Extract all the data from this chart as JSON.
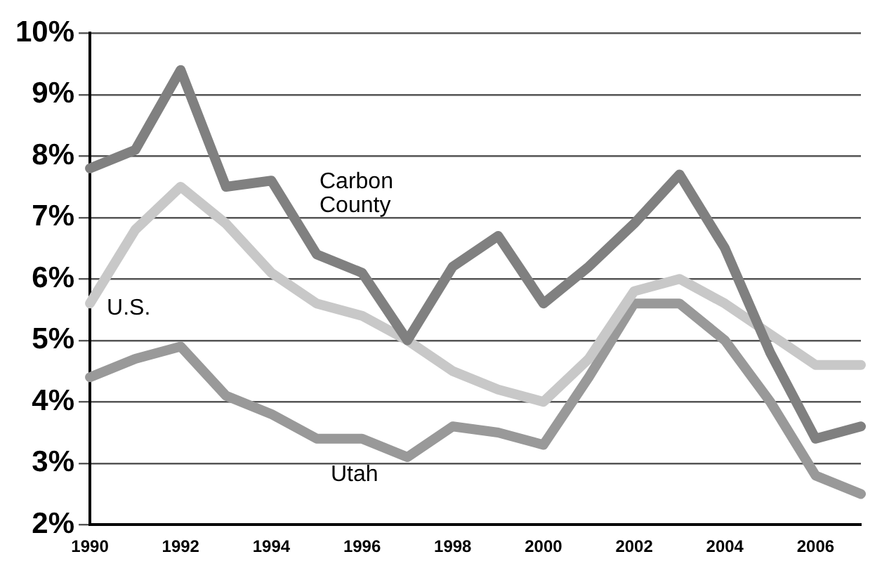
{
  "chart_data": {
    "type": "line",
    "categories": [
      "1990",
      null,
      "1992",
      null,
      "1994",
      null,
      "1996",
      null,
      "1998",
      null,
      "2000",
      null,
      "2002",
      null,
      "2004",
      null,
      "2006",
      null
    ],
    "series": [
      {
        "name": "Carbon County",
        "color": "#808080",
        "values": [
          7.8,
          8.1,
          9.4,
          7.5,
          7.6,
          6.4,
          6.1,
          5.0,
          6.2,
          6.7,
          5.6,
          6.2,
          6.9,
          7.7,
          6.5,
          4.8,
          3.4,
          3.6
        ]
      },
      {
        "name": "U.S.",
        "color": "#c8c8c8",
        "values": [
          5.6,
          6.8,
          7.5,
          6.9,
          6.1,
          5.6,
          5.4,
          5.0,
          4.5,
          4.2,
          4.0,
          4.7,
          5.8,
          6.0,
          5.6,
          5.1,
          4.6,
          4.6
        ]
      },
      {
        "name": "Utah",
        "color": "#999999",
        "values": [
          4.4,
          4.7,
          4.9,
          4.1,
          3.8,
          3.4,
          3.4,
          3.1,
          3.6,
          3.5,
          3.3,
          4.4,
          5.6,
          5.6,
          5.0,
          4.0,
          2.8,
          2.5
        ]
      }
    ],
    "ylim": [
      2,
      10
    ],
    "yticks": [
      {
        "value": 2,
        "label": "2%"
      },
      {
        "value": 3,
        "label": "3%"
      },
      {
        "value": 4,
        "label": "4%"
      },
      {
        "value": 5,
        "label": "5%"
      },
      {
        "value": 6,
        "label": "6%"
      },
      {
        "value": 7,
        "label": "7%"
      },
      {
        "value": 8,
        "label": "8%"
      },
      {
        "value": 9,
        "label": "9%"
      },
      {
        "value": 10,
        "label": "10%"
      }
    ],
    "grid": "y",
    "legend": false,
    "marker": "none",
    "line_style": "solid"
  }
}
